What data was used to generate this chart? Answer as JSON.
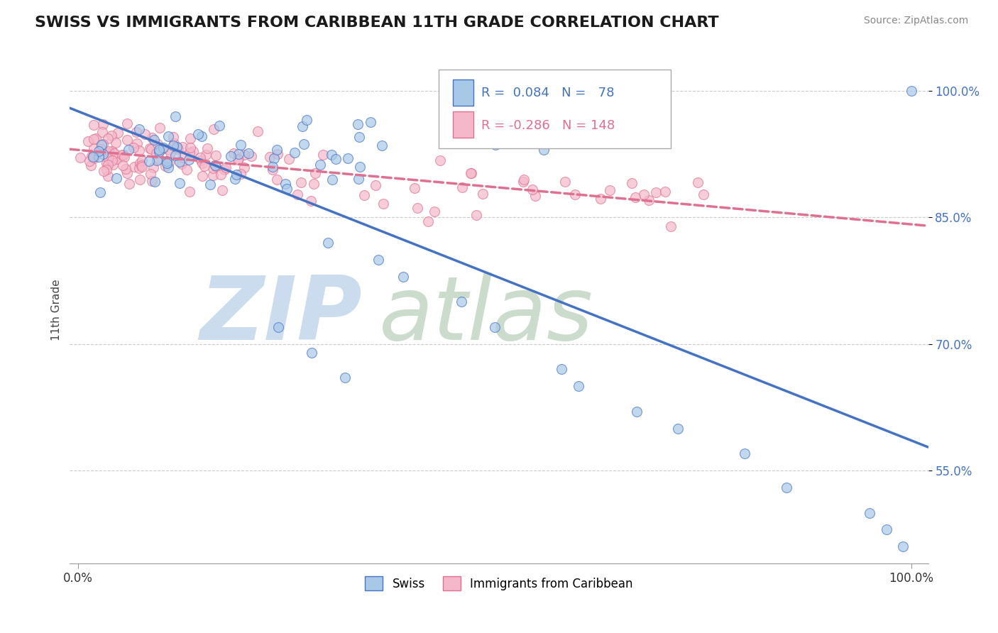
{
  "title": "SWISS VS IMMIGRANTS FROM CARIBBEAN 11TH GRADE CORRELATION CHART",
  "source": "Source: ZipAtlas.com",
  "ylabel": "11th Grade",
  "xrange": [
    -0.01,
    1.02
  ],
  "yrange": [
    0.44,
    1.04
  ],
  "legend_swiss_label": "Swiss",
  "legend_carib_label": "Immigrants from Caribbean",
  "r_swiss": "0.084",
  "n_swiss": "78",
  "r_carib": "-0.286",
  "n_carib": "148",
  "swiss_fill": "#a8c8e8",
  "swiss_edge": "#4472c4",
  "carib_fill": "#f5b8cb",
  "carib_edge": "#e07090",
  "swiss_line": "#4472c4",
  "carib_line": "#e07090",
  "ytick_vals": [
    0.55,
    0.7,
    0.85,
    1.0
  ],
  "ytick_labels": [
    "55.0%",
    "70.0%",
    "85.0%",
    "100.0%"
  ],
  "ytick_color": "#4472c4",
  "grid_color": "#cccccc",
  "bg_color": "#ffffff",
  "watermark_zip": "#ccdcef",
  "watermark_atlas": "#ccdccc",
  "title_fontsize": 16,
  "tick_fontsize": 12,
  "scatter_size": 100,
  "scatter_alpha": 0.7,
  "scatter_lw": 0.8
}
